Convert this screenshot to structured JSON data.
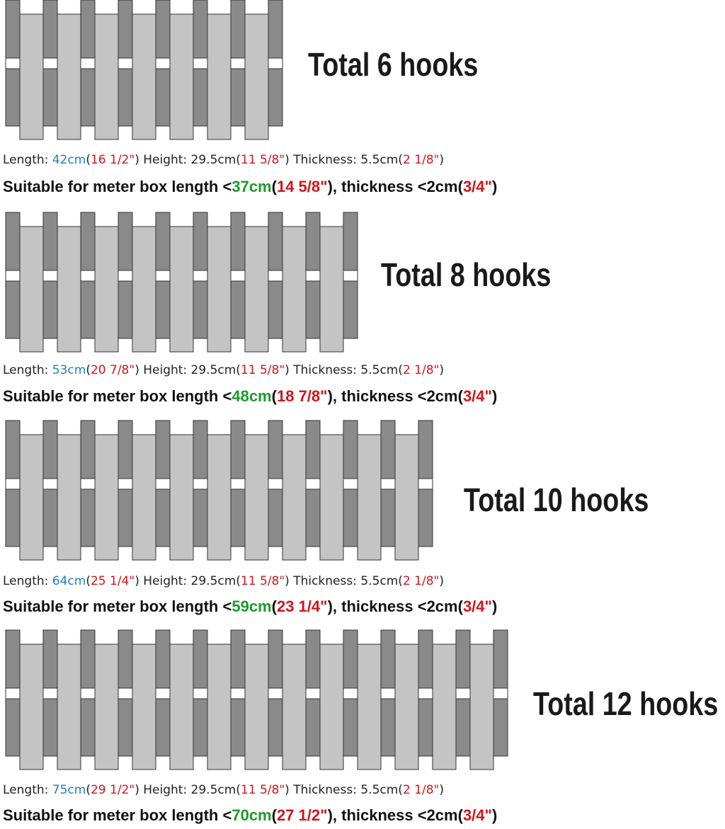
{
  "sections": [
    {
      "title": "Total 6 hooks",
      "size_line": [
        "Length: ",
        "42cm",
        "(",
        "16 1/2\"",
        ") Height: 29.5cm(",
        "11 5/8\"",
        ") Thickness: 5.5cm(",
        "2 1/8\"",
        ")"
      ],
      "fit_line": [
        "Suitable for meter box length <",
        "37cm",
        "(",
        "14 5/8\"",
        "), thickness <2cm(",
        "3/4\"",
        ")"
      ]
    },
    {
      "title": "Total 8 hooks",
      "size_line": [
        "Length: ",
        "53cm",
        "(",
        "20 7/8\"",
        ") Height: 29.5cm(",
        "11 5/8\"",
        ") Thickness: 5.5cm(",
        "2 1/8\"",
        ")"
      ],
      "fit_line": [
        "Suitable for meter box length <",
        "48cm",
        "(",
        "18 7/8\"",
        "), thickness <2cm(",
        "3/4\"",
        ")"
      ]
    },
    {
      "title": "Total 10 hooks",
      "size_line": [
        "Length: ",
        "64cm",
        "(",
        "25 1/4\"",
        ") Height: 29.5cm(",
        "11 5/8\"",
        ") Thickness: 5.5cm(",
        "2 1/8\"",
        ")"
      ],
      "fit_line": [
        "Suitable for meter box length <",
        "59cm",
        "(",
        "23 1/4\"",
        "), thickness <2cm(",
        "3/4\"",
        ")"
      ]
    },
    {
      "title": "Total 12 hooks",
      "size_line": [
        "Length: ",
        "75cm",
        "(",
        "29 1/2\"",
        ") Height: 29.5cm(",
        "11 5/8\"",
        ") Thickness: 5.5cm(",
        "2 1/8\"",
        ")"
      ],
      "fit_line": [
        "Suitable for meter box length <",
        "70cm",
        "(",
        "27 1/2\"",
        "), thickness <2cm(",
        "3/4\"",
        ")"
      ]
    }
  ]
}
